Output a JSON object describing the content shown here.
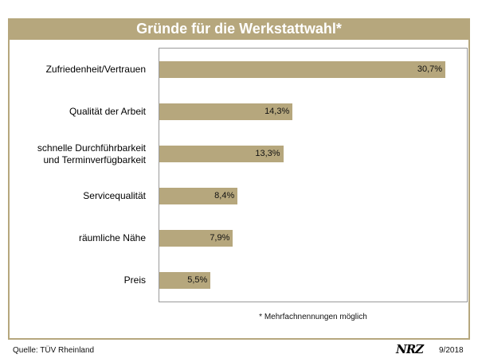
{
  "chart_data": {
    "type": "bar",
    "orientation": "horizontal",
    "title": "Gründe für die Werkstattwahl*",
    "categories": [
      [
        "Zufriedenheit/Vertrauen"
      ],
      [
        "Qualität der Arbeit"
      ],
      [
        "schnelle Durchführbarkeit",
        "und Terminverfügbarkeit"
      ],
      [
        "Servicequalität"
      ],
      [
        "räumliche Nähe"
      ],
      [
        "Preis"
      ]
    ],
    "values": [
      30.7,
      14.3,
      13.3,
      8.4,
      7.9,
      5.5
    ],
    "value_labels": [
      "30,7%",
      "14,3%",
      "13,3%",
      "8,4%",
      "7,9%",
      "5,5%"
    ],
    "xlim": [
      0,
      33
    ],
    "grid": false,
    "bar_color": "#b6a77d"
  },
  "footnote": "* Mehrfachnennungen möglich",
  "source": "Quelle: TÜV Rheinland",
  "logo": "NRZ",
  "date": "9/2018"
}
